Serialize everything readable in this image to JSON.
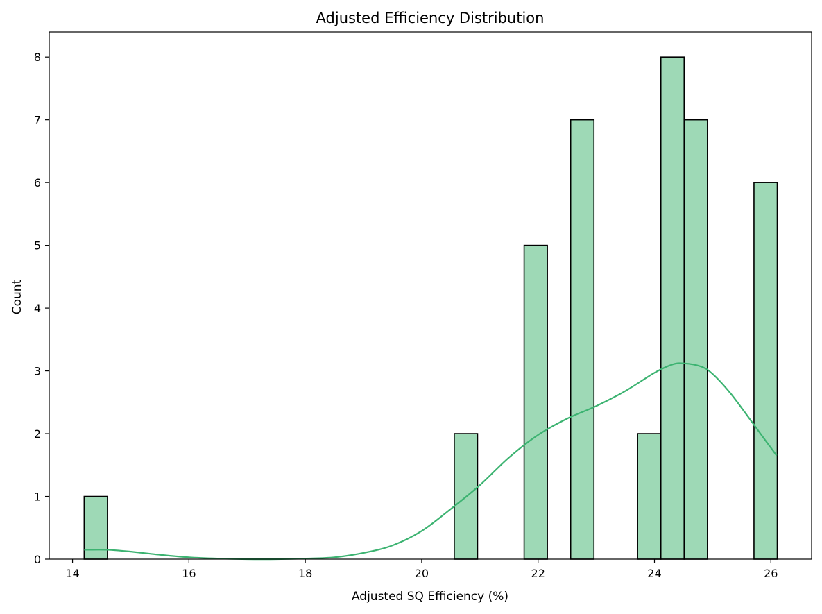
{
  "chart_data": {
    "type": "bar",
    "subtype": "histogram",
    "title": "Adjusted Efficiency Distribution",
    "xlabel": "Adjusted SQ Efficiency (%)",
    "ylabel": "Count",
    "xlim": [
      13.6,
      26.7
    ],
    "ylim": [
      0,
      8.4
    ],
    "xticks": [
      "14",
      "16",
      "18",
      "20",
      "22",
      "24",
      "26"
    ],
    "yticks": [
      "0",
      "1",
      "2",
      "3",
      "4",
      "5",
      "6",
      "7",
      "8"
    ],
    "bins": [
      {
        "start": 14.2,
        "end": 14.6,
        "count": 1
      },
      {
        "start": 20.56,
        "end": 20.96,
        "count": 2
      },
      {
        "start": 21.76,
        "end": 22.16,
        "count": 5
      },
      {
        "start": 22.56,
        "end": 22.96,
        "count": 7
      },
      {
        "start": 23.71,
        "end": 24.11,
        "count": 2
      },
      {
        "start": 24.11,
        "end": 24.51,
        "count": 8
      },
      {
        "start": 24.51,
        "end": 24.91,
        "count": 7
      },
      {
        "start": 25.71,
        "end": 26.11,
        "count": 6
      }
    ],
    "kde": {
      "x": [
        14.2,
        14.6,
        15.0,
        15.5,
        16.0,
        16.5,
        17.0,
        17.5,
        18.0,
        18.5,
        19.0,
        19.5,
        20.0,
        20.5,
        21.0,
        21.5,
        22.0,
        22.5,
        23.0,
        23.5,
        24.0,
        24.3,
        24.5,
        24.8,
        25.0,
        25.3,
        25.6,
        25.9,
        26.1
      ],
      "y": [
        0.15,
        0.15,
        0.12,
        0.07,
        0.03,
        0.01,
        0.0,
        0.0,
        0.01,
        0.03,
        0.1,
        0.22,
        0.45,
        0.8,
        1.18,
        1.62,
        1.98,
        2.24,
        2.44,
        2.68,
        2.97,
        3.1,
        3.12,
        3.07,
        2.95,
        2.65,
        2.28,
        1.9,
        1.65
      ]
    },
    "bar_color": "#9ed9b6",
    "bar_edge_color": "#000000",
    "kde_color": "#3cb371",
    "grid": false,
    "legend": "none"
  }
}
